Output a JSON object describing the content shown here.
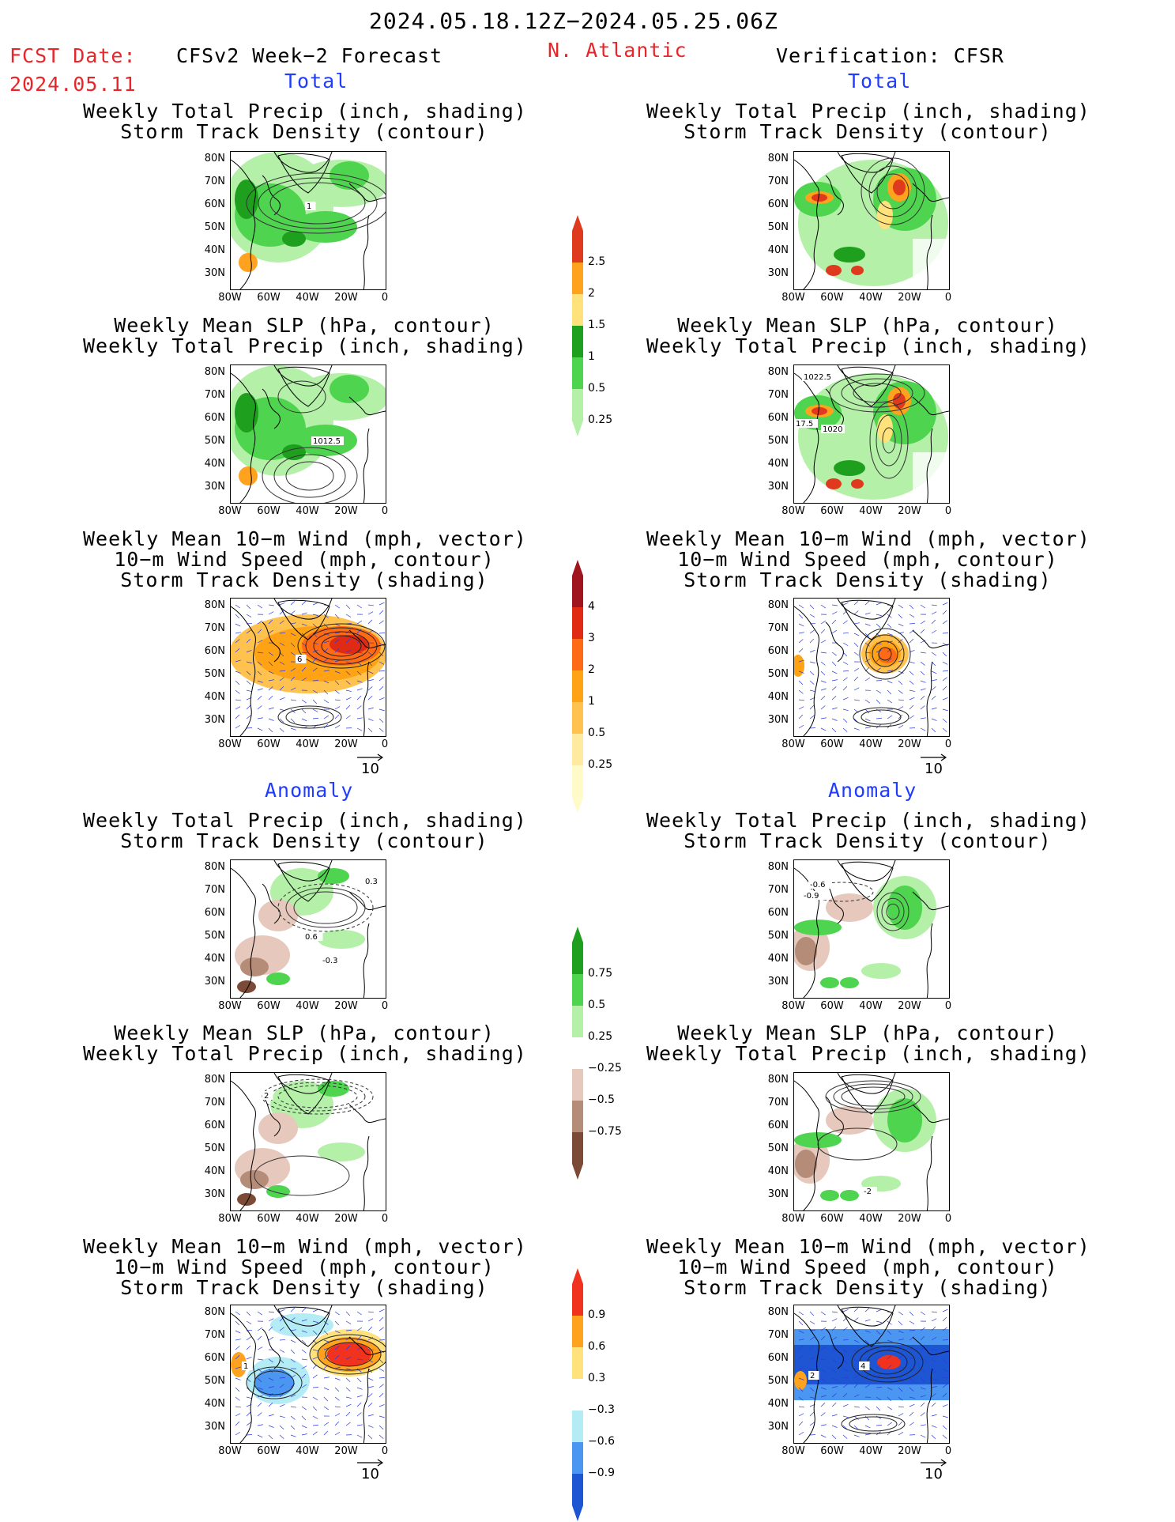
{
  "header": {
    "date_range": "2024.05.18.12Z−2024.05.25.06Z",
    "fcst_label": "FCST Date:",
    "fcst_date": "2024.05.11",
    "forecast_title": "CFSv2 Week−2 Forecast",
    "region": "N. Atlantic",
    "verification": "Verification: CFSR"
  },
  "sections": {
    "total": "Total",
    "anomaly": "Anomaly"
  },
  "panel_titles": {
    "precip_storm": [
      "Weekly Total Precip (inch, shading)",
      "Storm Track Density (contour)"
    ],
    "slp_precip": [
      "Weekly Mean SLP (hPa, contour)",
      "Weekly Total Precip (inch, shading)"
    ],
    "wind_storm": [
      "Weekly Mean 10−m Wind (mph, vector)",
      "10−m Wind Speed (mph, contour)",
      "Storm Track Density (shading)"
    ]
  },
  "axes": {
    "lat_labels": [
      "80N",
      "70N",
      "60N",
      "50N",
      "40N",
      "30N"
    ],
    "lon_labels": [
      "80W",
      "60W",
      "40W",
      "20W",
      "0"
    ]
  },
  "vector_scale": "10",
  "contour_labels": {
    "fcst_slp": "1012.5",
    "cfsr_slp_a": "1022.5",
    "cfsr_slp_b": "17.5",
    "cfsr_slp_c": "1020",
    "fcst_storm_total": "1",
    "fcst_wind_total": "6",
    "fcst_anom_storm_a": "0.3",
    "fcst_anom_storm_b": "0.6",
    "fcst_anom_storm_c": "-0.3",
    "cfsr_anom_storm_a": "-0.6",
    "cfsr_anom_storm_b": "-0.9",
    "fcst_anom_slp": "2",
    "cfsr_anom_slp": "-2",
    "fcst_anom_wind": "1",
    "cfsr_anom_wind_a": "4",
    "cfsr_anom_wind_b": "2"
  },
  "colorbars": {
    "precip_total": {
      "labels": [
        "2.5",
        "2",
        "1.5",
        "1",
        "0.5",
        "0.25"
      ],
      "colors": [
        "#e03a1e",
        "#ffa21e",
        "#ffe27c",
        "#1ea01e",
        "#4fd44f",
        "#b4f0a8"
      ]
    },
    "storm_total": {
      "labels": [
        "4",
        "3",
        "2",
        "1",
        "0.5",
        "0.25"
      ],
      "colors": [
        "#a0141e",
        "#e02a14",
        "#ff6a14",
        "#ffa214",
        "#ffc24f",
        "#ffeaa0",
        "#fffac8"
      ]
    },
    "precip_anom": {
      "labels": [
        "0.75",
        "0.5",
        "0.25",
        "−0.25",
        "−0.5",
        "−0.75"
      ],
      "colors": [
        "#1ea01e",
        "#4fd44f",
        "#b4f0a8",
        "#ffffff",
        "#e6c8bc",
        "#b48c78",
        "#7c4b37"
      ]
    },
    "storm_anom": {
      "labels": [
        "0.9",
        "0.6",
        "0.3",
        "−0.3",
        "−0.6",
        "−0.9"
      ],
      "colors": [
        "#f0321e",
        "#ffa21e",
        "#ffe27c",
        "#ffffff",
        "#b4ecf5",
        "#4b96f0",
        "#1e55d2"
      ]
    }
  }
}
